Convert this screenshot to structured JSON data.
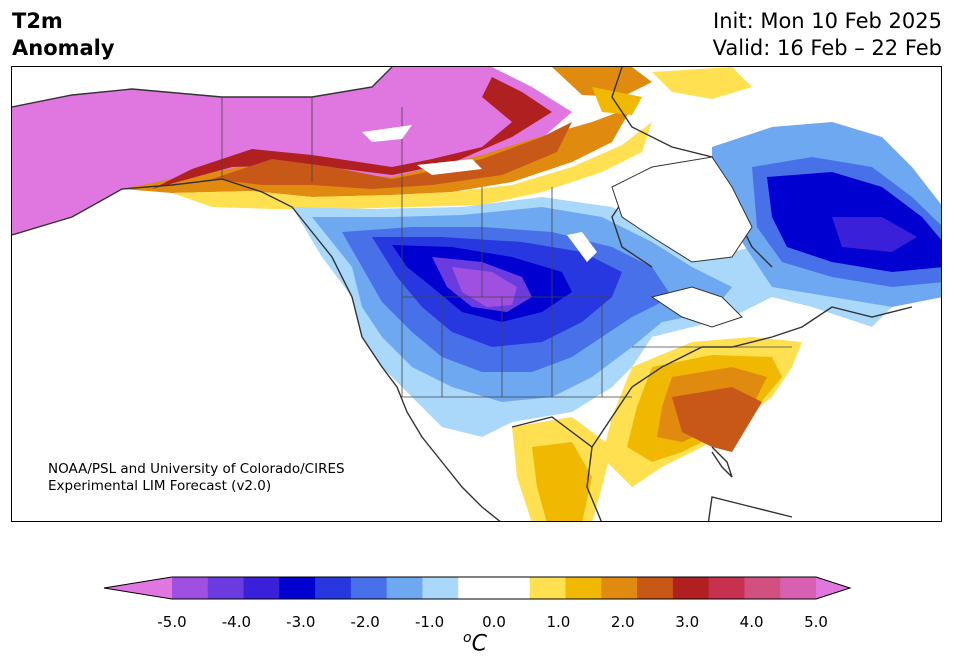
{
  "header": {
    "variable_line1": "T2m",
    "variable_line2": "Anomaly",
    "init": "Init: Mon 10 Feb 2025",
    "valid": "Valid: 16 Feb – 22 Feb"
  },
  "credit": {
    "line1": "NOAA/PSL and University of Colorado/CIRES",
    "line2": "Experimental LIM Forecast (v2.0)"
  },
  "colorbar": {
    "unit_base": "C",
    "unit_sup": "o",
    "ticks": [
      "-5.0",
      "-4.0",
      "-3.0",
      "-2.0",
      "-1.0",
      "0.0",
      "1.0",
      "2.0",
      "3.0",
      "4.0",
      "5.0"
    ],
    "colors": [
      "#e077e0",
      "#a050e0",
      "#6a3ce0",
      "#3a20d8",
      "#0000d0",
      "#2838e0",
      "#4870e8",
      "#6ea8f0",
      "#aad8fa",
      "#ffffff",
      "#ffffff",
      "#ffe050",
      "#f0b800",
      "#e08a10",
      "#c85818",
      "#b02020",
      "#c83050",
      "#d05080",
      "#d860b0",
      "#e077e0"
    ]
  }
}
